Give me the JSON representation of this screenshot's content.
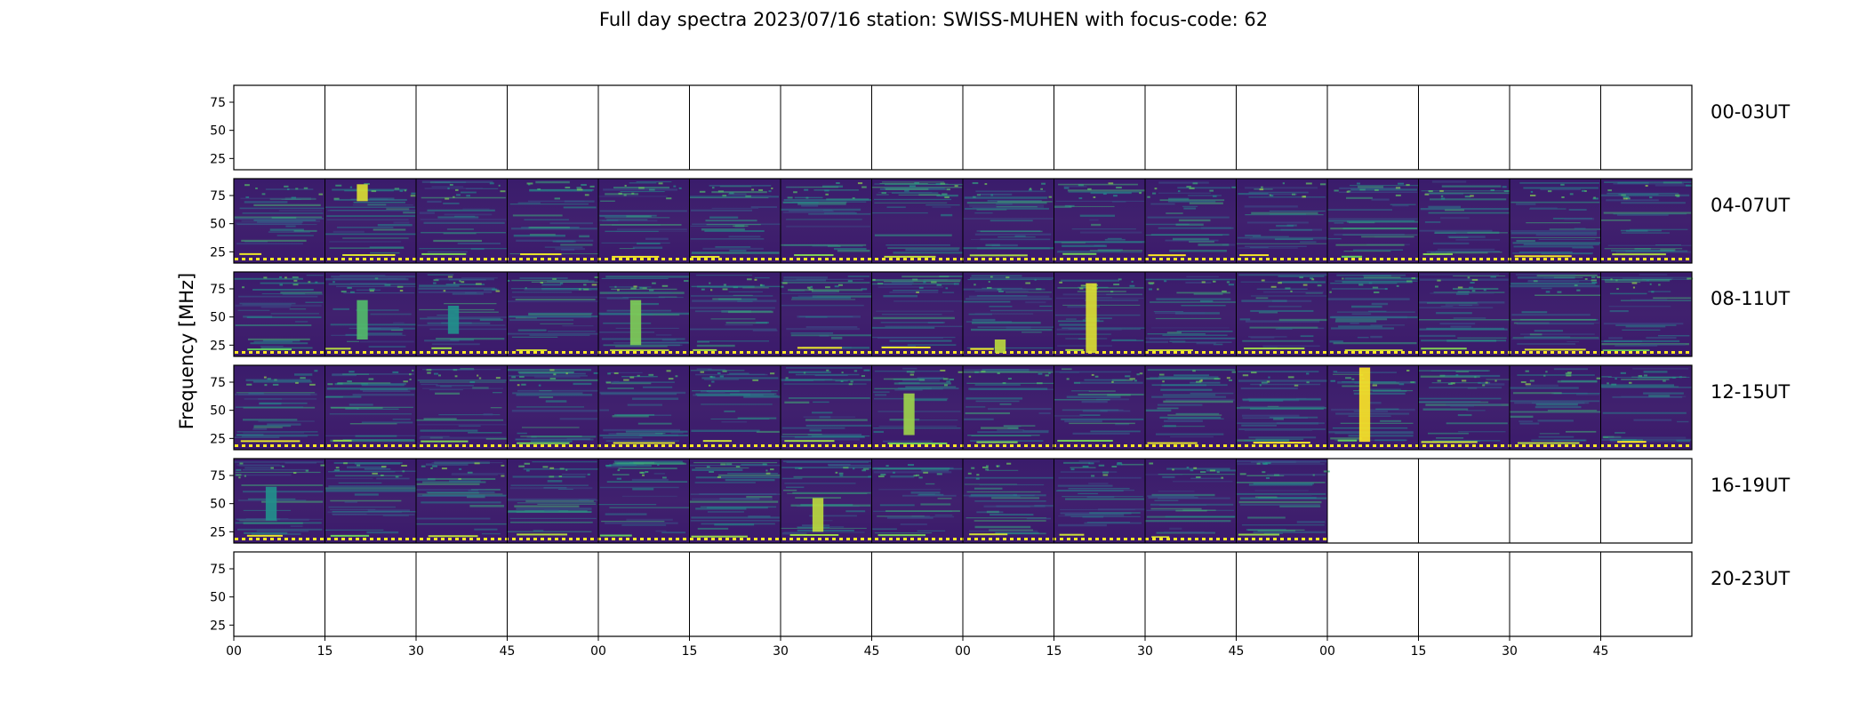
{
  "title": "Full day spectra 2023/07/16 station: SWISS-MUHEN with focus-code: 62",
  "colors": {
    "background_plasma": "#3b1a6b",
    "viridis_low": "#440154",
    "viridis_mid": "#21918c",
    "viridis_high": "#fde725",
    "frame": "#000000"
  },
  "chart_data": {
    "type": "heatmap",
    "title": "Full day spectra 2023/07/16 station: SWISS-MUHEN with focus-code: 62",
    "ylabel": "Frequency [MHz]",
    "xlabel": "",
    "ylim": [
      15,
      90
    ],
    "y_ticks": [
      25,
      50,
      75
    ],
    "x_tick_labels": [
      "00",
      "15",
      "30",
      "45",
      "00",
      "15",
      "30",
      "45",
      "00",
      "15",
      "30",
      "45",
      "00",
      "15",
      "30",
      "45"
    ],
    "colormap": "viridis",
    "rows": [
      {
        "label": "00-03UT",
        "has_data": [
          false,
          false,
          false,
          false,
          false,
          false,
          false,
          false,
          false,
          false,
          false,
          false,
          false,
          false,
          false,
          false
        ]
      },
      {
        "label": "04-07UT",
        "has_data": [
          true,
          true,
          true,
          true,
          true,
          true,
          true,
          true,
          true,
          true,
          true,
          true,
          true,
          true,
          true,
          true
        ]
      },
      {
        "label": "08-11UT",
        "has_data": [
          true,
          true,
          true,
          true,
          true,
          true,
          true,
          true,
          true,
          true,
          true,
          true,
          true,
          true,
          true,
          true
        ]
      },
      {
        "label": "12-15UT",
        "has_data": [
          true,
          true,
          true,
          true,
          true,
          true,
          true,
          true,
          true,
          true,
          true,
          true,
          true,
          true,
          true,
          true
        ]
      },
      {
        "label": "16-19UT",
        "has_data": [
          true,
          true,
          true,
          true,
          true,
          true,
          true,
          true,
          true,
          true,
          true,
          true,
          false,
          false,
          false,
          false
        ]
      },
      {
        "label": "20-23UT",
        "has_data": [
          false,
          false,
          false,
          false,
          false,
          false,
          false,
          false,
          false,
          false,
          false,
          false,
          false,
          false,
          false,
          false
        ]
      }
    ],
    "bursts": [
      {
        "row": 1,
        "panel": 1,
        "freq_low": 70,
        "freq_high": 85,
        "intensity": 0.95
      },
      {
        "row": 2,
        "panel": 1,
        "freq_low": 30,
        "freq_high": 65,
        "intensity": 0.7
      },
      {
        "row": 2,
        "panel": 2,
        "freq_low": 35,
        "freq_high": 60,
        "intensity": 0.5
      },
      {
        "row": 2,
        "panel": 4,
        "freq_low": 25,
        "freq_high": 65,
        "intensity": 0.8
      },
      {
        "row": 2,
        "panel": 8,
        "freq_low": 18,
        "freq_high": 30,
        "intensity": 0.9
      },
      {
        "row": 2,
        "panel": 9,
        "freq_low": 18,
        "freq_high": 80,
        "intensity": 0.95
      },
      {
        "row": 3,
        "panel": 7,
        "freq_low": 28,
        "freq_high": 65,
        "intensity": 0.85
      },
      {
        "row": 3,
        "panel": 12,
        "freq_low": 22,
        "freq_high": 88,
        "intensity": 1.0
      },
      {
        "row": 4,
        "panel": 0,
        "freq_low": 35,
        "freq_high": 65,
        "intensity": 0.5
      },
      {
        "row": 4,
        "panel": 6,
        "freq_low": 25,
        "freq_high": 55,
        "intensity": 0.9
      }
    ]
  }
}
